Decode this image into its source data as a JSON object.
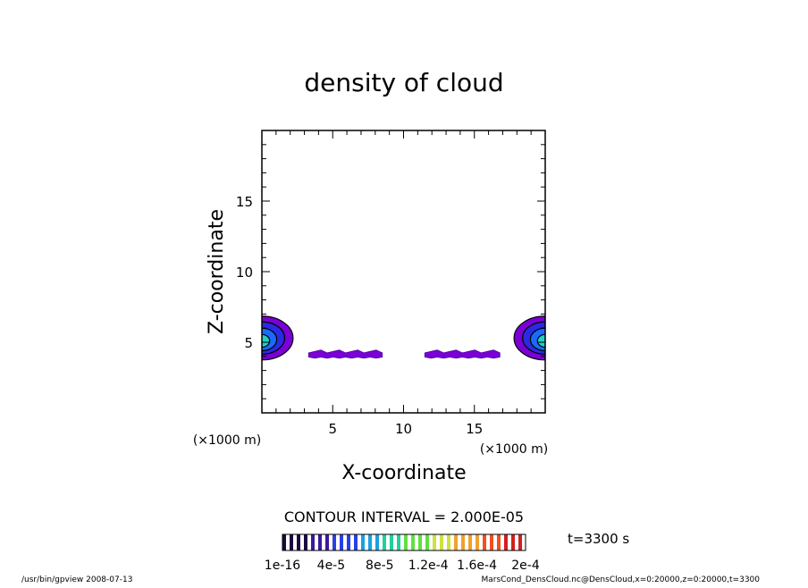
{
  "chart_data": {
    "type": "contour",
    "title": "density of cloud",
    "xlabel": "X-coordinate",
    "ylabel": "Z-coordinate",
    "xlim": [
      0,
      20
    ],
    "ylim": [
      0,
      20
    ],
    "x_unit_label": "(×1000 m)",
    "y_unit_label": "(×1000 m)",
    "x_ticks": [
      5,
      10,
      15
    ],
    "y_ticks": [
      5,
      10,
      15
    ],
    "contour_interval_text": "CONTOUR INTERVAL = 2.000E-05",
    "time_label": "t=3300 s",
    "colorbar_labels": [
      "1e-16",
      "4e-5",
      "8e-5",
      "1.2e-4",
      "1.6e-4",
      "2e-4"
    ],
    "colorbar_values": [
      1e-16,
      4e-05,
      8e-05,
      0.00012,
      0.00016,
      0.0002
    ],
    "regions": [
      {
        "name": "left-cloud",
        "x_range": [
          0,
          2.3
        ],
        "z_range": [
          3.8,
          7.0
        ],
        "max_level": 3
      },
      {
        "name": "right-cloud",
        "x_range": [
          17.7,
          20
        ],
        "z_range": [
          3.8,
          7.0
        ],
        "max_level": 3
      },
      {
        "name": "left-streak",
        "x_range": [
          3.3,
          8.5
        ],
        "z_range": [
          3.8,
          4.6
        ],
        "max_level": 1
      },
      {
        "name": "right-streak",
        "x_range": [
          11.5,
          16.8
        ],
        "z_range": [
          3.8,
          4.6
        ],
        "max_level": 1
      }
    ],
    "colors": {
      "level1": "#7a00d6",
      "level2": "#2a2ae0",
      "level3": "#1a6aff",
      "level4": "#20d0c0",
      "contour": "#000000"
    },
    "colorbar_colors": [
      "#1b0a40",
      "#3a1a9a",
      "#2a40e0",
      "#1aa0e0",
      "#20d0a0",
      "#60e040",
      "#d0e040",
      "#f0a030",
      "#f05020",
      "#d02020"
    ]
  },
  "footer": {
    "left": "/usr/bin/gpview   2008-07-13",
    "right": "MarsCond_DensCloud.nc@DensCloud,x=0:20000,z=0:20000,t=3300"
  }
}
